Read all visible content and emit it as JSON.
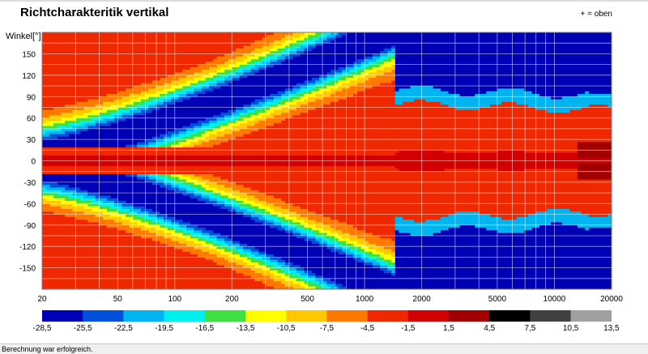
{
  "chart_data": {
    "type": "heatmap",
    "title": "Richtcharakteritik vertikal",
    "legend_note": "+ = oben",
    "ylabel": "Winkel[°]",
    "xscale": "log",
    "xlim": [
      20,
      20000
    ],
    "ylim": [
      -180,
      180
    ],
    "x_ticks": [
      "20",
      "50",
      "100",
      "200",
      "500",
      "1000",
      "2000",
      "5000",
      "10000",
      "20000"
    ],
    "y_ticks": [
      "150",
      "120",
      "90",
      "60",
      "30",
      "0",
      "-30",
      "-60",
      "-90",
      "-120",
      "-150"
    ],
    "colorbar_labels": [
      "-28,5",
      "-25,5",
      "-22,5",
      "-19,5",
      "-16,5",
      "-13,5",
      "-10,5",
      "-7,5",
      "-4,5",
      "-1,5",
      "1,5",
      "4,5",
      "7,5",
      "10,5",
      "13,5"
    ],
    "colorbar_colors": [
      "#0000b4",
      "#0050dc",
      "#00b4f0",
      "#00f0f0",
      "#40e040",
      "#ffff00",
      "#ffc800",
      "#ff7800",
      "#f02800",
      "#d20000",
      "#a00000",
      "#000000",
      "#404040",
      "#a0a0a0",
      "#e0e0e0"
    ],
    "grid": true
  },
  "status": {
    "text": "Berechnung war erfolgreich."
  }
}
